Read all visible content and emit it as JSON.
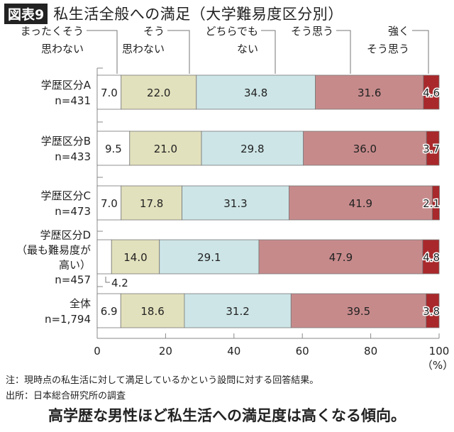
{
  "header": {
    "badge": "図表9",
    "title": "私生活全般への満足（大学難易度区分別）"
  },
  "chart_data": {
    "type": "bar",
    "stacked": true,
    "orientation": "horizontal",
    "legend": [
      "まったくそう\n思わない",
      "そう\n思わない",
      "どちらでも\nない",
      "そう思う",
      "強く\nそう思う"
    ],
    "legend_placement": "top",
    "colors": [
      "#ffffff",
      "#e2e1bd",
      "#cde5e7",
      "#c78a8b",
      "#a9282b"
    ],
    "categories": [
      "学歴区分A\nn=431",
      "学歴区分B\nn=433",
      "学歴区分C\nn=473",
      "学歴区分D\n（最も難易度が\n高い）\nn=457",
      "全体\nn=1,794"
    ],
    "series": [
      {
        "name": "まったくそう思わない",
        "values": [
          7.0,
          9.5,
          7.0,
          4.2,
          6.9
        ]
      },
      {
        "name": "そう思わない",
        "values": [
          22.0,
          21.0,
          17.8,
          14.0,
          18.6
        ]
      },
      {
        "name": "どちらでもない",
        "values": [
          34.8,
          29.8,
          31.3,
          29.1,
          31.2
        ]
      },
      {
        "name": "そう思う",
        "values": [
          31.6,
          36.0,
          41.9,
          47.9,
          39.5
        ]
      },
      {
        "name": "強くそう思う",
        "values": [
          4.6,
          3.7,
          2.1,
          4.8,
          3.8
        ]
      }
    ],
    "xlim": [
      0,
      100
    ],
    "xticks": [
      "0",
      "20",
      "40",
      "60",
      "80",
      "100"
    ],
    "xunit": "（%）",
    "grid": false
  },
  "notes": {
    "note": "注：現時点の私生活に対して満足しているかという設問に対する回答結果。",
    "source": "出所：日本総合研究所の調査"
  },
  "caption": "高学歴な男性ほど私生活への満足度は高くなる傾向。"
}
